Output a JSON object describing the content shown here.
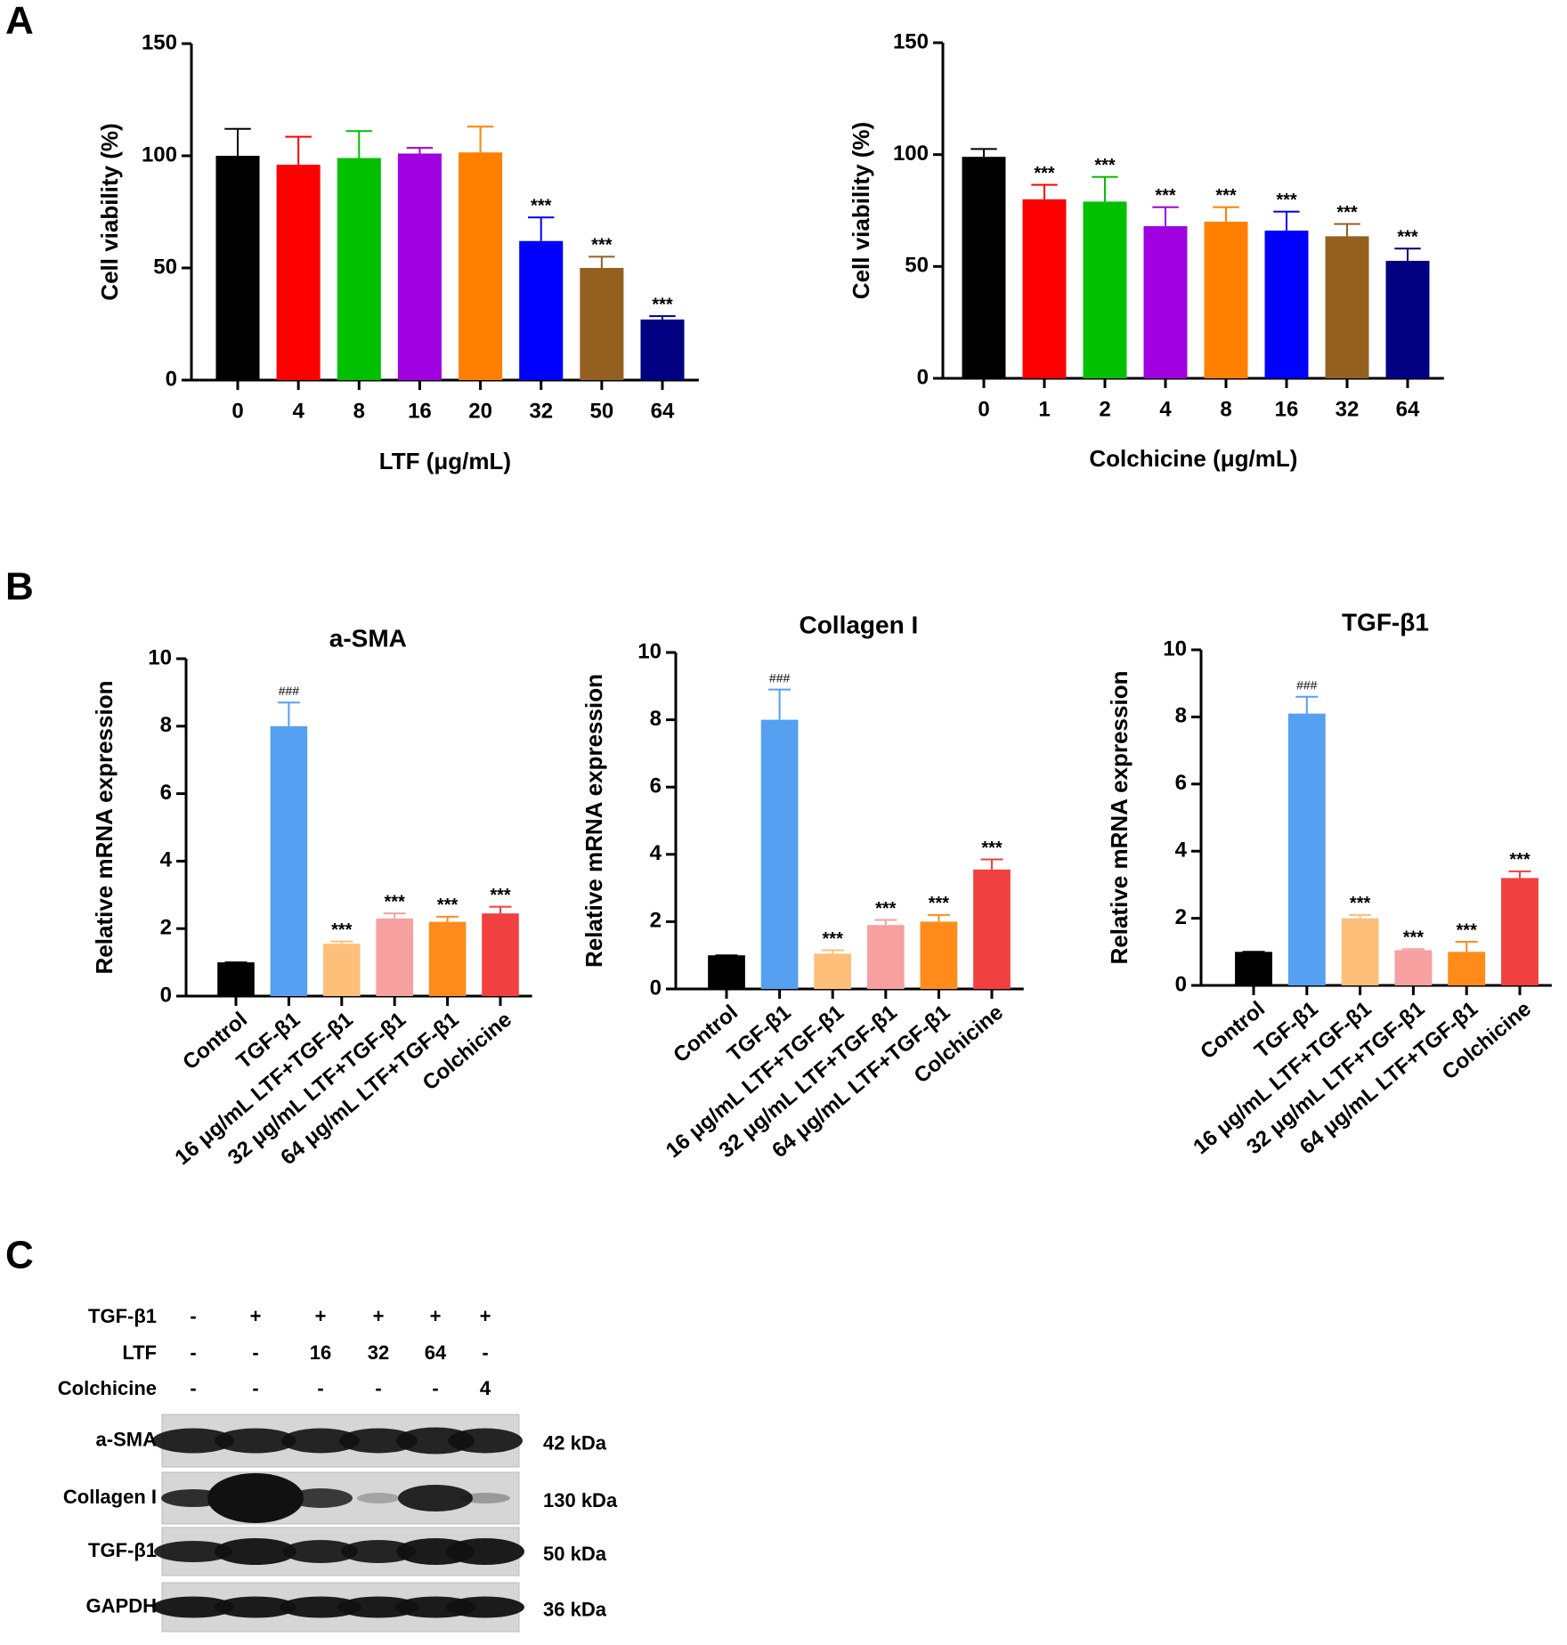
{
  "panels": [
    "A",
    "B",
    "C"
  ],
  "chart_data": [
    {
      "type": "bar",
      "ylabel": "Cell viability (%)",
      "xlabel": "LTF (μg/mL)",
      "categories": [
        "0",
        "4",
        "8",
        "16",
        "20",
        "32",
        "50",
        "64"
      ],
      "values": [
        100,
        96,
        99,
        101,
        101.5,
        62,
        50,
        27
      ],
      "errors": [
        12,
        12.5,
        12,
        2.5,
        11.5,
        10.5,
        5,
        1.5
      ],
      "significance": [
        null,
        null,
        null,
        null,
        null,
        "***",
        "***",
        "***"
      ],
      "colors": [
        "#000000",
        "#ff0000",
        "#00c000",
        "#a000e0",
        "#ff8000",
        "#0000ff",
        "#946020",
        "#000080"
      ],
      "ylim": [
        0,
        150
      ],
      "yticks": [
        0,
        50,
        100,
        150
      ]
    },
    {
      "type": "bar",
      "ylabel": "Cell viability (%)",
      "xlabel": "Colchicine (μg/mL)",
      "categories": [
        "0",
        "1",
        "2",
        "4",
        "8",
        "16",
        "32",
        "64"
      ],
      "values": [
        99,
        80,
        79,
        68,
        70,
        66,
        63.5,
        52.5
      ],
      "errors": [
        3.5,
        6.5,
        11,
        8.5,
        6.5,
        8.5,
        5.5,
        5.5
      ],
      "significance": [
        null,
        "***",
        "***",
        "***",
        "***",
        "***",
        "***",
        "***"
      ],
      "colors": [
        "#000000",
        "#ff0000",
        "#00c000",
        "#a000e0",
        "#ff8000",
        "#0000ff",
        "#946020",
        "#000080"
      ],
      "ylim": [
        0,
        150
      ],
      "yticks": [
        0,
        50,
        100,
        150
      ]
    },
    {
      "type": "bar",
      "title": "a-SMA",
      "ylabel": "Relative mRNA expression",
      "categories": [
        "Control",
        "TGF-β1",
        "16 μg/mL LTF+TGF-β1",
        "32 μg/mL LTF+TGF-β1",
        "64 μg/mL LTF+TGF-β1",
        "Colchicine"
      ],
      "values": [
        1,
        8,
        1.55,
        2.3,
        2.2,
        2.45
      ],
      "errors": [
        0,
        0.7,
        0.07,
        0.15,
        0.15,
        0.2
      ],
      "significance": [
        null,
        "###",
        "***",
        "***",
        "***",
        "***"
      ],
      "colors": [
        "#000000",
        "#55a0f0",
        "#fdbf7a",
        "#f7a0a0",
        "#ff8c1a",
        "#f04040"
      ],
      "ylim": [
        0,
        10
      ],
      "yticks": [
        0,
        2,
        4,
        6,
        8,
        10
      ]
    },
    {
      "type": "bar",
      "title": "Collagen I",
      "ylabel": "Relative mRNA expression",
      "categories": [
        "Control",
        "TGF-β1",
        "16 μg/mL LTF+TGF-β1",
        "32 μg/mL LTF+TGF-β1",
        "64 μg/mL LTF+TGF-β1",
        "Colchicine"
      ],
      "values": [
        1,
        8,
        1.05,
        1.9,
        2.0,
        3.55
      ],
      "errors": [
        0,
        0.9,
        0.1,
        0.15,
        0.2,
        0.3
      ],
      "significance": [
        null,
        "###",
        "***",
        "***",
        "***",
        "***"
      ],
      "colors": [
        "#000000",
        "#55a0f0",
        "#fdbf7a",
        "#f7a0a0",
        "#ff8c1a",
        "#f04040"
      ],
      "ylim": [
        0,
        10
      ],
      "yticks": [
        0,
        2,
        4,
        6,
        8,
        10
      ]
    },
    {
      "type": "bar",
      "title": "TGF-β1",
      "ylabel": "Relative mRNA expression",
      "categories": [
        "Control",
        "TGF-β1",
        "16 μg/mL LTF+TGF-β1",
        "32 μg/mL LTF+TGF-β1",
        "64 μg/mL LTF+TGF-β1",
        "Colchicine"
      ],
      "values": [
        1,
        8.1,
        2.0,
        1.05,
        1.0,
        3.2
      ],
      "errors": [
        0,
        0.5,
        0.1,
        0.03,
        0.3,
        0.2
      ],
      "significance": [
        null,
        "###",
        "***",
        "***",
        "***",
        "***"
      ],
      "colors": [
        "#000000",
        "#55a0f0",
        "#fdbf7a",
        "#f7a0a0",
        "#ff8c1a",
        "#f04040"
      ],
      "ylim": [
        0,
        10
      ],
      "yticks": [
        0,
        2,
        4,
        6,
        8,
        10
      ]
    }
  ],
  "blot": {
    "conditions": [
      {
        "label": "TGF-β1",
        "values": [
          "-",
          "+",
          "+",
          "+",
          "+",
          "+"
        ]
      },
      {
        "label": "LTF",
        "values": [
          "-",
          "-",
          "16",
          "32",
          "64",
          "-"
        ]
      },
      {
        "label": "Colchicine",
        "values": [
          "-",
          "-",
          "-",
          "-",
          "-",
          "4"
        ]
      }
    ],
    "bands": [
      {
        "label": "a-SMA",
        "size": "42 kDa"
      },
      {
        "label": "Collagen I",
        "size": "130 kDa"
      },
      {
        "label": "TGF-β1",
        "size": "50 kDa"
      },
      {
        "label": "GAPDH",
        "size": "36 kDa"
      }
    ]
  }
}
